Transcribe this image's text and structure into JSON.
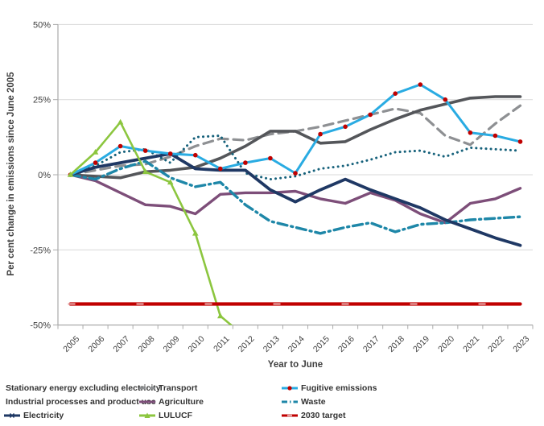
{
  "chart_data": {
    "type": "line",
    "title": "",
    "xlabel": "Year to June",
    "ylabel": "Per cent change in emissions since June 2005",
    "x": [
      "2005",
      "2006",
      "2007",
      "2008",
      "2009",
      "2010",
      "2011",
      "2012",
      "2013",
      "2014",
      "2015",
      "2016",
      "2017",
      "2018",
      "2019",
      "2020",
      "2021",
      "2022",
      "2023"
    ],
    "ylim": [
      -50,
      50
    ],
    "y_ticks": [
      {
        "value": 50,
        "label": "50%"
      },
      {
        "value": 25,
        "label": "25%"
      },
      {
        "value": 0,
        "label": "0%"
      },
      {
        "value": -25,
        "label": "-25%"
      },
      {
        "value": -50,
        "label": "-50%"
      }
    ],
    "grid": true,
    "legend_position": "bottom",
    "note": "LULUCF line falls below the -50% axis minimum between 2011 and 2012 and is clipped",
    "series": [
      {
        "name": "Stationary energy excluding electricity",
        "color": "#54565A",
        "line": "solid",
        "width": 3.6,
        "marker": "x",
        "values": [
          0,
          -0.5,
          -1,
          1,
          1.5,
          2.5,
          5.5,
          9.5,
          14.5,
          14.5,
          10.5,
          11,
          15,
          18.5,
          21.5,
          23.5,
          25.5,
          26,
          26
        ]
      },
      {
        "name": "Transport",
        "color": "#8E9093",
        "line": "dashed",
        "width": 3.2,
        "marker": "none",
        "values": [
          0,
          1.5,
          3,
          3.5,
          6,
          9.5,
          12,
          11.5,
          13.5,
          14.5,
          16,
          18,
          20,
          22,
          20.5,
          13,
          10,
          17,
          23
        ]
      },
      {
        "name": "Fugitive emissions",
        "color": "#29ABE2",
        "line": "solid",
        "width": 3.0,
        "marker": "circle-red",
        "marker_color": "#C00000",
        "values": [
          0,
          4,
          9.5,
          8,
          7,
          6.5,
          2,
          4,
          5.5,
          0.5,
          13.5,
          16,
          20,
          27,
          30,
          25,
          14,
          13,
          11
        ]
      },
      {
        "name": "Industrial processes and product use",
        "color": "#16617B",
        "line": "dotted",
        "width": 3.0,
        "marker": "none",
        "values": [
          0,
          3,
          7.5,
          8.5,
          4,
          12.5,
          13,
          0.5,
          -1.5,
          -0.5,
          2,
          3,
          5,
          7.5,
          8,
          6,
          9,
          8.5,
          8
        ]
      },
      {
        "name": "Agriculture",
        "color": "#7D4E79",
        "line": "solid",
        "width": 3.4,
        "marker": "none",
        "values": [
          0,
          -2,
          -6,
          -10,
          -10.5,
          -13,
          -6.5,
          -6,
          -6,
          -5.5,
          -8,
          -9.5,
          -6,
          -8.5,
          -13,
          -16,
          -9.5,
          -8,
          -4.5
        ]
      },
      {
        "name": "Waste",
        "color": "#1E87A8",
        "line": "dashdot",
        "width": 3.4,
        "marker": "none",
        "values": [
          0,
          -1.5,
          2,
          4.5,
          -1,
          -4,
          -2.5,
          -10,
          -15.5,
          -17.5,
          -19.5,
          -17.5,
          -16,
          -19,
          -16.5,
          -16,
          -15,
          -14.5,
          -14
        ]
      },
      {
        "name": "Electricity",
        "color": "#1F3864",
        "line": "solid",
        "width": 3.8,
        "marker": "x",
        "values": [
          0,
          2.5,
          4,
          5.5,
          7,
          2,
          1.5,
          1.5,
          -5,
          -9,
          -5,
          -1.5,
          -5,
          -8,
          -11,
          -15,
          -18,
          -21,
          -23.5
        ]
      },
      {
        "name": "LULUCF",
        "color": "#8CC63F",
        "line": "solid",
        "width": 2.6,
        "marker": "triangle",
        "values": [
          0,
          7.5,
          17.5,
          1,
          -2.5,
          -19.5,
          -47,
          -54,
          null,
          null,
          null,
          null,
          null,
          null,
          null,
          null,
          null,
          null,
          null
        ]
      },
      {
        "name": "2030 target",
        "color": "#C00000",
        "line": "solid",
        "width": 4.2,
        "marker": "dash-light",
        "overlay_color": "#E4A0A0",
        "values": [
          -43,
          -43,
          -43,
          -43,
          -43,
          -43,
          -43,
          -43,
          -43,
          -43,
          -43,
          -43,
          -43,
          -43,
          -43,
          -43,
          -43,
          -43,
          -43
        ]
      }
    ]
  },
  "style": {
    "grid_color": "#D9D9D9",
    "axis_color": "#ABABAB",
    "tick_text_color": "#404040"
  }
}
